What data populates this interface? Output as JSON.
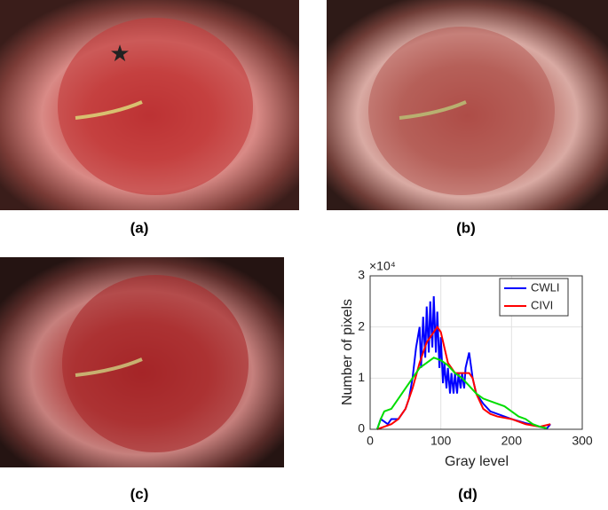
{
  "panels": [
    "(a)",
    "(b)",
    "(c)",
    "(d)"
  ],
  "chart_data": {
    "type": "line",
    "ylabel": "Number of pixels",
    "xlabel": "Gray level",
    "multiplier": "×10⁴",
    "xlim": [
      0,
      300
    ],
    "xticks": [
      0,
      100,
      200,
      300
    ],
    "ylim": [
      0,
      3
    ],
    "yticks": [
      0,
      1,
      2,
      3
    ],
    "grid": true,
    "legend": "upper right",
    "series": [
      {
        "name": "CWLI",
        "color": "#0000ff",
        "x": [
          10,
          15,
          20,
          25,
          30,
          40,
          50,
          55,
          60,
          65,
          70,
          72,
          75,
          78,
          80,
          83,
          85,
          88,
          90,
          93,
          95,
          98,
          100,
          103,
          105,
          108,
          110,
          113,
          115,
          118,
          120,
          123,
          125,
          128,
          130,
          133,
          135,
          140,
          145,
          150,
          160,
          170,
          180,
          190,
          200,
          220,
          240,
          250,
          255
        ],
        "values": [
          0,
          0.2,
          0.15,
          0.1,
          0.2,
          0.2,
          0.4,
          0.6,
          1.0,
          1.6,
          2.0,
          1.2,
          2.2,
          1.4,
          2.4,
          1.5,
          2.5,
          1.6,
          2.6,
          1.5,
          2.3,
          1.2,
          1.8,
          0.9,
          1.3,
          0.8,
          1.2,
          0.7,
          1.1,
          0.7,
          1.1,
          0.7,
          1.1,
          0.8,
          1.1,
          0.8,
          1.2,
          1.5,
          1.0,
          0.7,
          0.5,
          0.35,
          0.3,
          0.25,
          0.2,
          0.12,
          0.05,
          0.02,
          0.1
        ]
      },
      {
        "name": "CIVI",
        "color": "#ff0000",
        "x": [
          10,
          20,
          30,
          40,
          50,
          60,
          70,
          80,
          90,
          95,
          100,
          105,
          110,
          120,
          130,
          140,
          145,
          150,
          160,
          170,
          180,
          200,
          220,
          240,
          255
        ],
        "values": [
          0,
          0.05,
          0.1,
          0.2,
          0.4,
          0.8,
          1.3,
          1.7,
          1.9,
          2.0,
          1.9,
          1.6,
          1.3,
          1.1,
          1.1,
          1.1,
          1.0,
          0.7,
          0.4,
          0.3,
          0.25,
          0.2,
          0.1,
          0.05,
          0.1
        ]
      },
      {
        "color": "#00dd00",
        "x": [
          10,
          15,
          20,
          30,
          40,
          50,
          60,
          70,
          80,
          90,
          100,
          110,
          120,
          130,
          140,
          150,
          160,
          170,
          180,
          190,
          200,
          210,
          220,
          230,
          240,
          250
        ],
        "values": [
          0,
          0.2,
          0.35,
          0.4,
          0.6,
          0.8,
          1.0,
          1.2,
          1.3,
          1.4,
          1.35,
          1.25,
          1.1,
          1.0,
          0.85,
          0.7,
          0.6,
          0.55,
          0.5,
          0.45,
          0.35,
          0.25,
          0.2,
          0.1,
          0.05,
          0.02
        ]
      }
    ]
  }
}
